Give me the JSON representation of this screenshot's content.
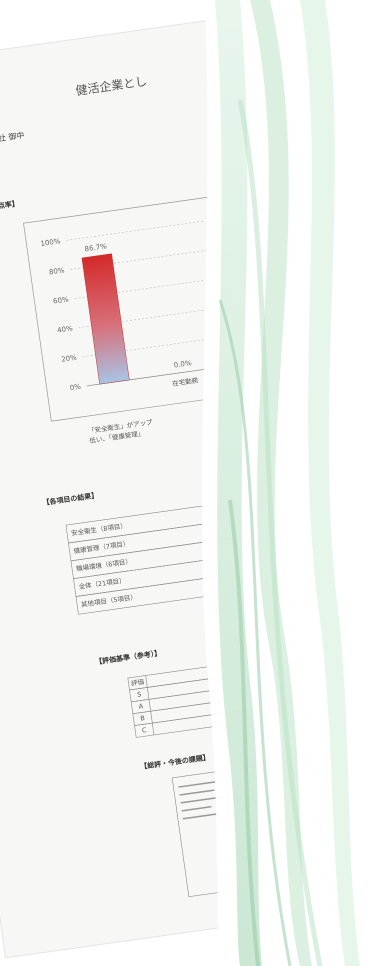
{
  "document": {
    "title": "健活企業とし",
    "recipient": "○○工業 株式会社 御中",
    "results_heading": "【各項目の結果】",
    "results_rows": [
      "安全衛生（8項目）",
      "健康管理（7項目）",
      "職場環境（6項目）",
      "全体（21項目）",
      "其他項目（5項目）"
    ],
    "criteria_heading": "【評価基準（参考）】",
    "criteria_rows": [
      "評価",
      "S",
      "A",
      "B",
      "C"
    ],
    "summary_heading": "【総評・今後の課題】"
  },
  "chart_data": {
    "type": "bar",
    "title": "【各項目の得点率】",
    "categories": [
      null,
      "在宅勤務"
    ],
    "values": [
      86.7,
      0.0
    ],
    "value_labels": [
      "86.7%",
      "0.0%"
    ],
    "ylim": [
      0,
      100
    ],
    "yticks": [
      {
        "value": 0,
        "label": "0%"
      },
      {
        "value": 20,
        "label": "20%"
      },
      {
        "value": 40,
        "label": "40%"
      },
      {
        "value": 60,
        "label": "60%"
      },
      {
        "value": 80,
        "label": "80%"
      },
      {
        "value": 100,
        "label": "100%"
      }
    ],
    "grid": true,
    "note": "「安全衛生」がアップ\n低い、「健康管理」"
  }
}
